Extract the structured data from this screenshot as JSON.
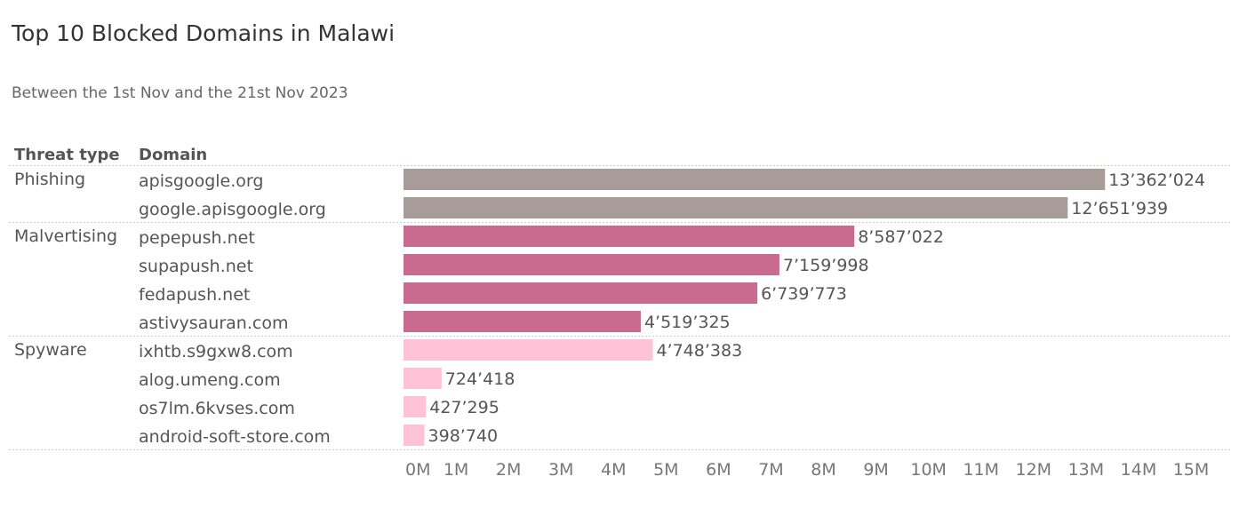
{
  "title": "Top 10 Blocked Domains in Malawi",
  "subtitle": "Between the 1st Nov and the 21st Nov 2023",
  "chart_data": {
    "type": "bar",
    "orientation": "horizontal",
    "title": "Top 10 Blocked Domains in Malawi",
    "subtitle": "Between the 1st Nov and the 21st Nov 2023",
    "column_headers": [
      "Threat type",
      "Domain"
    ],
    "xlim": [
      0,
      15000000
    ],
    "ticks": [
      0,
      1000000,
      2000000,
      3000000,
      4000000,
      5000000,
      6000000,
      7000000,
      8000000,
      9000000,
      10000000,
      11000000,
      12000000,
      13000000,
      14000000,
      15000000
    ],
    "tick_labels": [
      "0M",
      "1M",
      "2M",
      "3M",
      "4M",
      "5M",
      "6M",
      "7M",
      "8M",
      "9M",
      "10M",
      "11M",
      "12M",
      "13M",
      "14M",
      "15M"
    ],
    "grid": false,
    "groups": [
      {
        "name": "Phishing",
        "color": "#a89c98",
        "rows": [
          {
            "domain": "apisgoogle.org",
            "value": 13362024,
            "label": "13’362’024"
          },
          {
            "domain": "google.apisgoogle.org",
            "value": 12651939,
            "label": "12’651’939"
          }
        ]
      },
      {
        "name": "Malvertising",
        "color": "#c96b8f",
        "rows": [
          {
            "domain": "pepepush.net",
            "value": 8587022,
            "label": "8’587’022"
          },
          {
            "domain": "supapush.net",
            "value": 7159998,
            "label": "7’159’998"
          },
          {
            "domain": "fedapush.net",
            "value": 6739773,
            "label": "6’739’773"
          },
          {
            "domain": "astivysauran.com",
            "value": 4519325,
            "label": "4’519’325"
          }
        ]
      },
      {
        "name": "Spyware",
        "color": "#ffc2d7",
        "rows": [
          {
            "domain": "ixhtb.s9gxw8.com",
            "value": 4748383,
            "label": "4’748’383"
          },
          {
            "domain": "alog.umeng.com",
            "value": 724418,
            "label": "724’418"
          },
          {
            "domain": "os7lm.6kvses.com",
            "value": 427295,
            "label": "427’295"
          },
          {
            "domain": "android-soft-store.com",
            "value": 398740,
            "label": "398’740"
          }
        ]
      }
    ]
  }
}
